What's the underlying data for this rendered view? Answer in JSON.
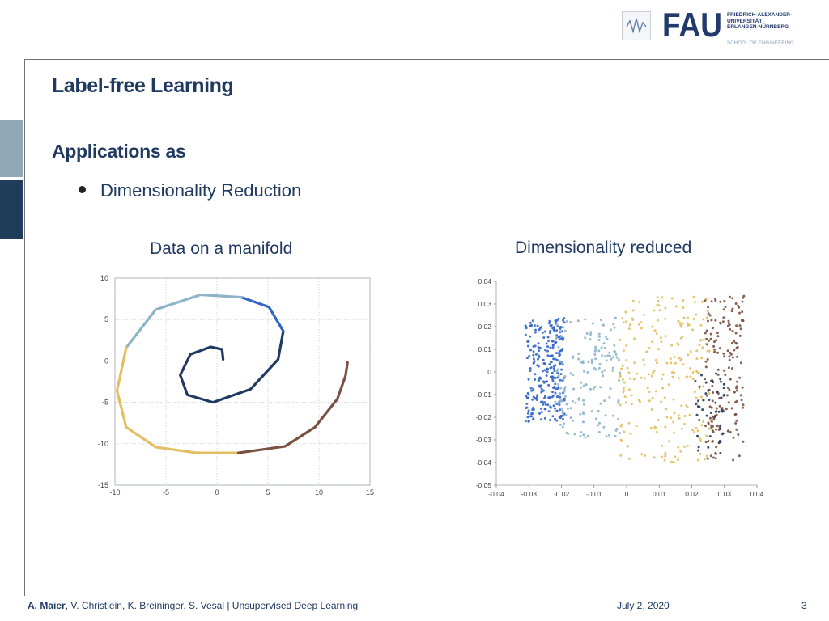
{
  "logo": {
    "mark": "FAU",
    "university_lines": [
      "FRIEDRICH-ALEXANDER-",
      "UNIVERSITÄT",
      "ERLANGEN-NÜRNBERG"
    ],
    "school": "SCHOOL OF ENGINEERING",
    "icon": "waveform-icon"
  },
  "slide": {
    "title": "Label-free Learning",
    "heading": "Applications as",
    "bullet": "Dimensionality Reduction"
  },
  "footer": {
    "lead_author": "A. Maier",
    "authors_rest": ", V. Christlein, K. Breininger, S. Vesal  |  Unsupervised Deep Learning",
    "date": "July 2, 2020",
    "page": "3"
  },
  "colors": {
    "navy": "#1f3961",
    "blue": "#3466c8",
    "light_blue": "#8db4c9",
    "gold": "#e3bf62",
    "brown": "#7a5140",
    "side_tab_light": "#8fa9b7",
    "side_tab_dark": "#1f3d58"
  },
  "chart_data": [
    {
      "type": "line",
      "title": "Data on a manifold",
      "xlim": [
        -10,
        15
      ],
      "ylim": [
        -15,
        10
      ],
      "xticks": [
        -10,
        -5,
        0,
        5,
        10,
        15
      ],
      "yticks": [
        -15,
        -10,
        -5,
        0,
        5,
        10
      ],
      "grid": true,
      "series": [
        {
          "color_key": "navy",
          "x": [
            0.6,
            0.5,
            -0.6,
            -2.6,
            -3.6,
            -2.9,
            -0.4,
            3.3,
            6.0,
            6.5
          ],
          "y": [
            0.2,
            1.4,
            1.7,
            0.8,
            -1.7,
            -4.1,
            -5.0,
            -3.4,
            0.2,
            3.6
          ]
        },
        {
          "color_key": "blue",
          "x": [
            6.5,
            5.1,
            2.4
          ],
          "y": [
            3.6,
            6.5,
            7.7
          ]
        },
        {
          "color_key": "light_blue",
          "x": [
            2.4,
            -1.6,
            -6.0,
            -8.9
          ],
          "y": [
            7.7,
            8.0,
            6.2,
            1.6
          ]
        },
        {
          "color_key": "gold",
          "x": [
            -8.9,
            -9.8,
            -8.9,
            -6.0,
            -2.0,
            2.1
          ],
          "y": [
            1.6,
            -3.6,
            -8.0,
            -10.4,
            -11.1,
            -11.1
          ]
        },
        {
          "color_key": "brown",
          "x": [
            2.1,
            6.7,
            9.6,
            11.8,
            12.6,
            12.8
          ],
          "y": [
            -11.1,
            -10.3,
            -8.0,
            -4.6,
            -1.8,
            -0.2
          ]
        }
      ]
    },
    {
      "type": "scatter",
      "title": "Dimensionality reduced",
      "xlim": [
        -0.04,
        0.04
      ],
      "ylim": [
        -0.05,
        0.04
      ],
      "xticks": [
        -0.04,
        -0.03,
        -0.02,
        -0.01,
        0,
        0.01,
        0.02,
        0.03,
        0.04
      ],
      "yticks": [
        -0.05,
        -0.04,
        -0.03,
        -0.02,
        -0.01,
        0,
        0.01,
        0.02,
        0.03,
        0.04
      ],
      "grid": false,
      "regions": [
        {
          "color_key": "blue",
          "x_range": [
            -0.031,
            -0.019
          ],
          "y_range": [
            -0.022,
            0.024
          ],
          "count": 260
        },
        {
          "color_key": "light_blue",
          "x_range": [
            -0.022,
            -0.002
          ],
          "y_range": [
            -0.029,
            0.024
          ],
          "count": 160
        },
        {
          "color_key": "gold",
          "x_range": [
            -0.002,
            0.026
          ],
          "y_range": [
            -0.04,
            0.034
          ],
          "count": 230
        },
        {
          "color_key": "brown",
          "x_range": [
            0.024,
            0.036
          ],
          "y_range": [
            -0.039,
            0.034
          ],
          "count": 170
        },
        {
          "color_key": "navy",
          "x_range": [
            0.021,
            0.03
          ],
          "y_range": [
            -0.036,
            0.0
          ],
          "count": 45
        }
      ]
    }
  ]
}
